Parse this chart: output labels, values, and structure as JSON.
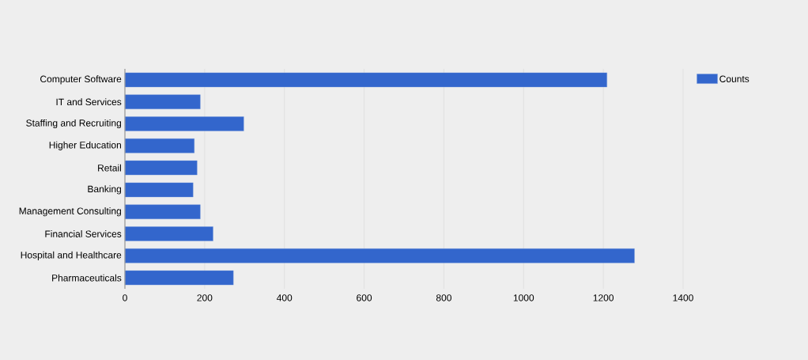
{
  "chart_data": {
    "type": "bar",
    "orientation": "horizontal",
    "categories": [
      "Computer Software",
      "IT and Services",
      "Staffing and Recruiting",
      "Higher Education",
      "Retail",
      "Banking",
      "Management Consulting",
      "Financial Services",
      "Hospital and Healthcare",
      "Pharmaceuticals"
    ],
    "series": [
      {
        "name": "Counts",
        "color": "#3366cc",
        "values": [
          1209,
          189,
          298,
          174,
          181,
          171,
          189,
          221,
          1278,
          272
        ]
      }
    ],
    "xlim": [
      0,
      1400
    ],
    "xticks": [
      0,
      200,
      400,
      600,
      800,
      1000,
      1200,
      1400
    ],
    "grid": "x",
    "legend": "top right"
  }
}
